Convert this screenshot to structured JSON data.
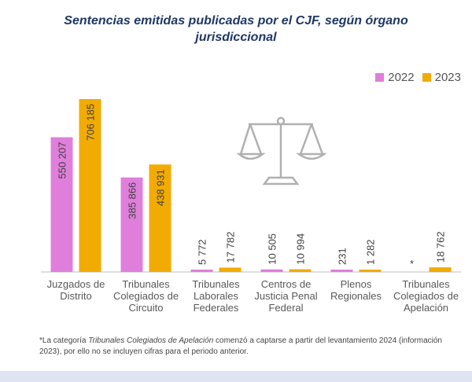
{
  "title": "Sentencias emitidas publicadas por el CJF, según órgano jurisdiccional",
  "colors": {
    "s2022": "#e07fdb",
    "s2023": "#f2ab02",
    "axis": "#bfbfbf",
    "icon": "#b0b0b0"
  },
  "chart_data": {
    "type": "bar",
    "title": "Sentencias emitidas publicadas por el CJF, según órgano jurisdiccional",
    "categories": [
      [
        "Juzgados de",
        "Distrito"
      ],
      [
        "Tribunales",
        "Colegiados de",
        "Circuito"
      ],
      [
        "Tribunales",
        "Laborales",
        "Federales"
      ],
      [
        "Centros de",
        "Justicia Penal",
        "Federal"
      ],
      [
        "Plenos",
        "Regionales"
      ],
      [
        "Tribunales",
        "Colegiados de",
        "Apelación"
      ]
    ],
    "series": [
      {
        "name": "2022",
        "values": [
          550207,
          385866,
          5772,
          10505,
          231,
          null
        ],
        "labels": [
          "550 207",
          "385 866",
          "5 772",
          "10 505",
          "231",
          "*"
        ]
      },
      {
        "name": "2023",
        "values": [
          706185,
          438931,
          17782,
          10994,
          1282,
          18762
        ],
        "labels": [
          "706 185",
          "438 931",
          "17 782",
          "10 994",
          "1 282",
          "18 762"
        ]
      }
    ],
    "ylim": [
      0,
      706185
    ],
    "legend_position": "top-right",
    "grid": false
  },
  "footnote": {
    "prefix": "*La categoría ",
    "category": "Tribunales Colegiados de Apelación",
    "suffix": " comenzó a captarse a partir del levantamiento 2024 (información 2023), por ello no se incluyen cifras para el periodo anterior."
  }
}
